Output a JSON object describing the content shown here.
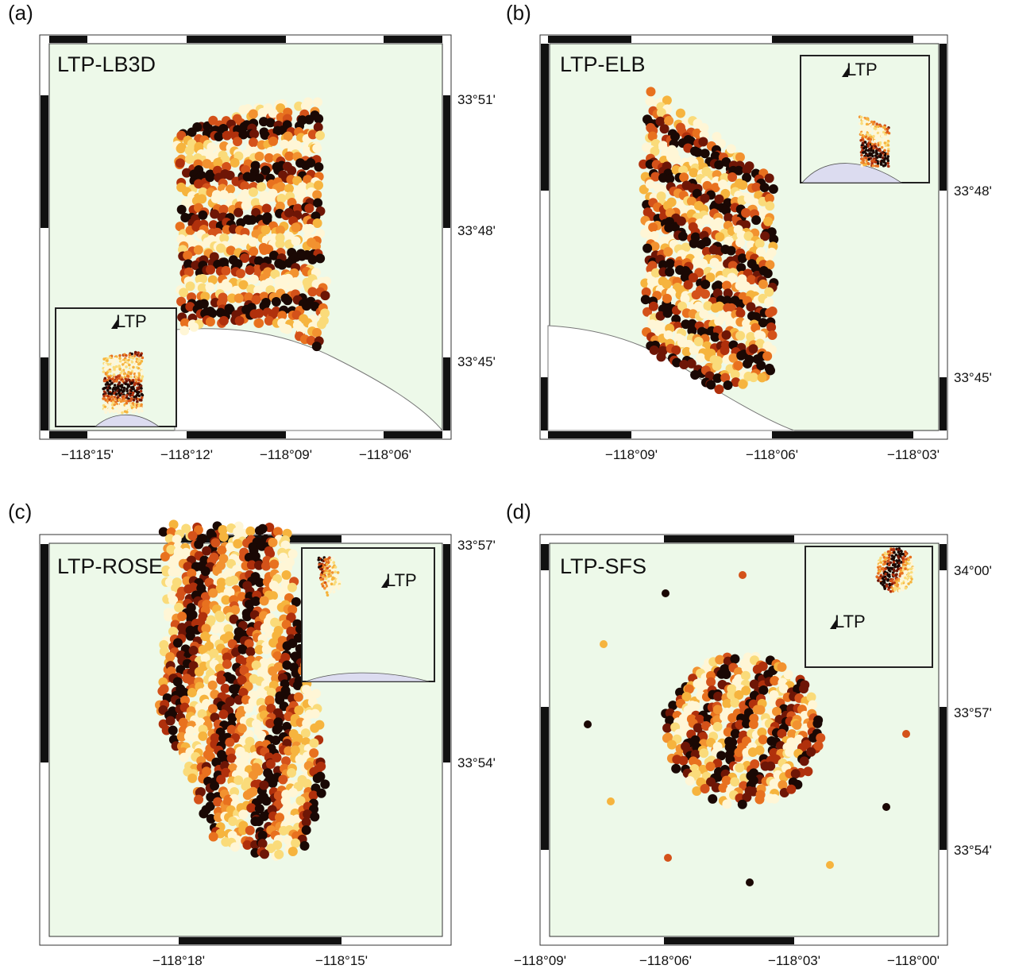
{
  "panels": [
    {
      "label": "(a)",
      "title": "LTP-LB3D",
      "inset_label": "LTP",
      "x_ticks": [
        "−118°15'",
        "−118°12'",
        "−118°09'",
        "−118°06'"
      ],
      "y_ticks": [
        "33°51'",
        "33°48'",
        "33°45'"
      ]
    },
    {
      "label": "(b)",
      "title": "LTP-ELB",
      "inset_label": "LTP",
      "x_ticks": [
        "−118°09'",
        "−118°06'",
        "−118°03'"
      ],
      "y_ticks": [
        "33°48'",
        "33°45'"
      ]
    },
    {
      "label": "(c)",
      "title": "LTP-ROSE",
      "inset_label": "LTP",
      "x_ticks": [
        "−118°18'",
        "−118°15'"
      ],
      "y_ticks": [
        "33°57'",
        "33°54'"
      ]
    },
    {
      "label": "(d)",
      "title": "LTP-SFS",
      "inset_label": "LTP",
      "x_ticks": [
        "−118°09'",
        "−118°06'",
        "−118°03'",
        "−118°00'"
      ],
      "y_ticks": [
        "34°00'",
        "33°57'",
        "33°54'"
      ]
    }
  ]
}
